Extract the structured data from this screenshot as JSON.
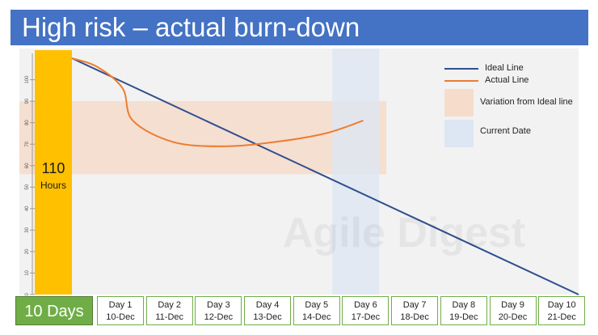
{
  "title": "High risk – actual burn-down",
  "hours_bar": {
    "value": "110",
    "unit": "Hours"
  },
  "days_label": "10 Days",
  "days": [
    {
      "day": "Day 1",
      "date": "10-Dec"
    },
    {
      "day": "Day 2",
      "date": "11-Dec"
    },
    {
      "day": "Day 3",
      "date": "12-Dec"
    },
    {
      "day": "Day 4",
      "date": "13-Dec"
    },
    {
      "day": "Day 5",
      "date": "14-Dec"
    },
    {
      "day": "Day 6",
      "date": "17-Dec"
    },
    {
      "day": "Day 7",
      "date": "18-Dec"
    },
    {
      "day": "Day 8",
      "date": "19-Dec"
    },
    {
      "day": "Day 9",
      "date": "20-Dec"
    },
    {
      "day": "Day 10",
      "date": "21-Dec"
    }
  ],
  "legend": {
    "ideal": "Ideal Line",
    "actual": "Actual Line",
    "variation": "Variation from Ideal line",
    "current": "Current Date"
  },
  "watermark": "Agile Digest",
  "colors": {
    "title_bg": "#4472c4",
    "ideal_line": "#2f4f8f",
    "actual_line": "#ed7d31",
    "variation_band": "#f6dccb",
    "current_date": "#dde6f3",
    "hours_bar": "#ffc000",
    "days_box": "#70ad47"
  },
  "chart_data": {
    "type": "line",
    "x": [
      0,
      1,
      2,
      3,
      4,
      5,
      6,
      7,
      8,
      9,
      10
    ],
    "ylim": [
      0,
      110
    ],
    "y_ticks": [
      0,
      10,
      20,
      30,
      40,
      50,
      60,
      70,
      80,
      90,
      100
    ],
    "series": [
      {
        "name": "Ideal Line",
        "x": [
          0,
          10
        ],
        "values": [
          110,
          0
        ]
      },
      {
        "name": "Actual Line",
        "x": [
          0,
          0.5,
          1,
          1.2,
          2,
          3,
          4,
          5,
          5.75
        ],
        "values": [
          110,
          106,
          96,
          81,
          71,
          69,
          71,
          75,
          81
        ]
      }
    ],
    "variation_band": [
      56,
      90
    ],
    "current_date_x": 5.6
  }
}
